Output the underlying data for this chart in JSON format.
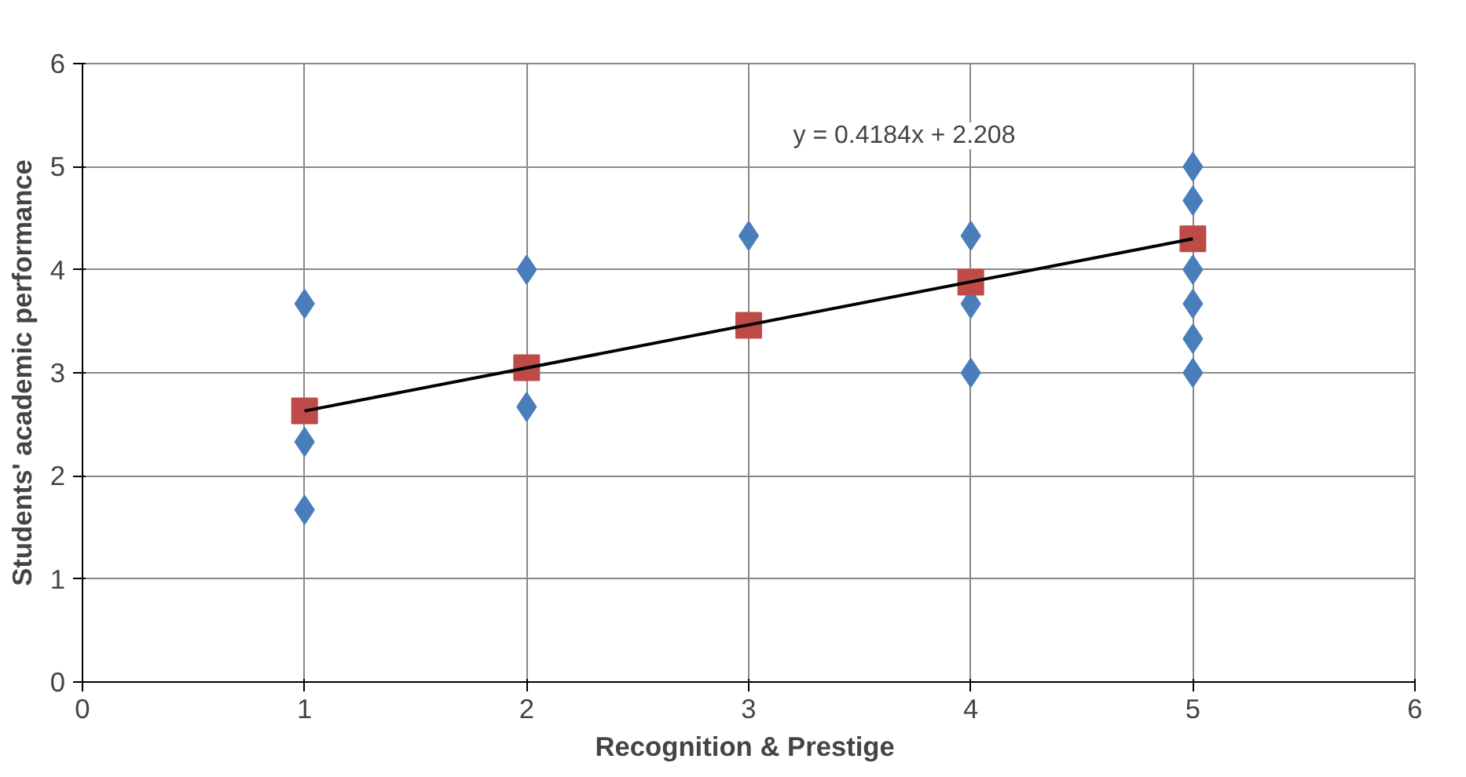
{
  "chart_data": {
    "type": "scatter",
    "xlabel": "Recognition  & Prestige",
    "ylabel": "Students' academic performance",
    "annotations": [
      "y = 0.4184x + 2.208"
    ],
    "xlim": [
      0,
      6
    ],
    "ylim": [
      0,
      6
    ],
    "xticks": [
      0,
      1,
      2,
      3,
      4,
      5,
      6
    ],
    "yticks": [
      0,
      1,
      2,
      3,
      4,
      5,
      6
    ],
    "grid": true,
    "series": [
      {
        "color": "#4a7ebb",
        "marker": "diamond",
        "x": [
          1,
          1,
          1,
          2,
          2,
          3,
          4,
          4,
          4,
          5,
          5,
          5,
          5,
          5,
          5
        ],
        "values": [
          3.67,
          2.33,
          1.67,
          4.0,
          2.67,
          4.33,
          4.33,
          3.67,
          3.0,
          5.0,
          4.67,
          4.0,
          3.67,
          3.33,
          3.0
        ]
      },
      {
        "color": "#be4b48",
        "marker": "square",
        "x": [
          1,
          2,
          3,
          4,
          5
        ],
        "values": [
          2.63,
          3.05,
          3.46,
          3.88,
          4.3
        ]
      },
      {
        "type": "line",
        "color": "#000000",
        "marker": "none",
        "x": [
          1,
          5
        ],
        "values": [
          2.63,
          4.3
        ]
      }
    ]
  }
}
